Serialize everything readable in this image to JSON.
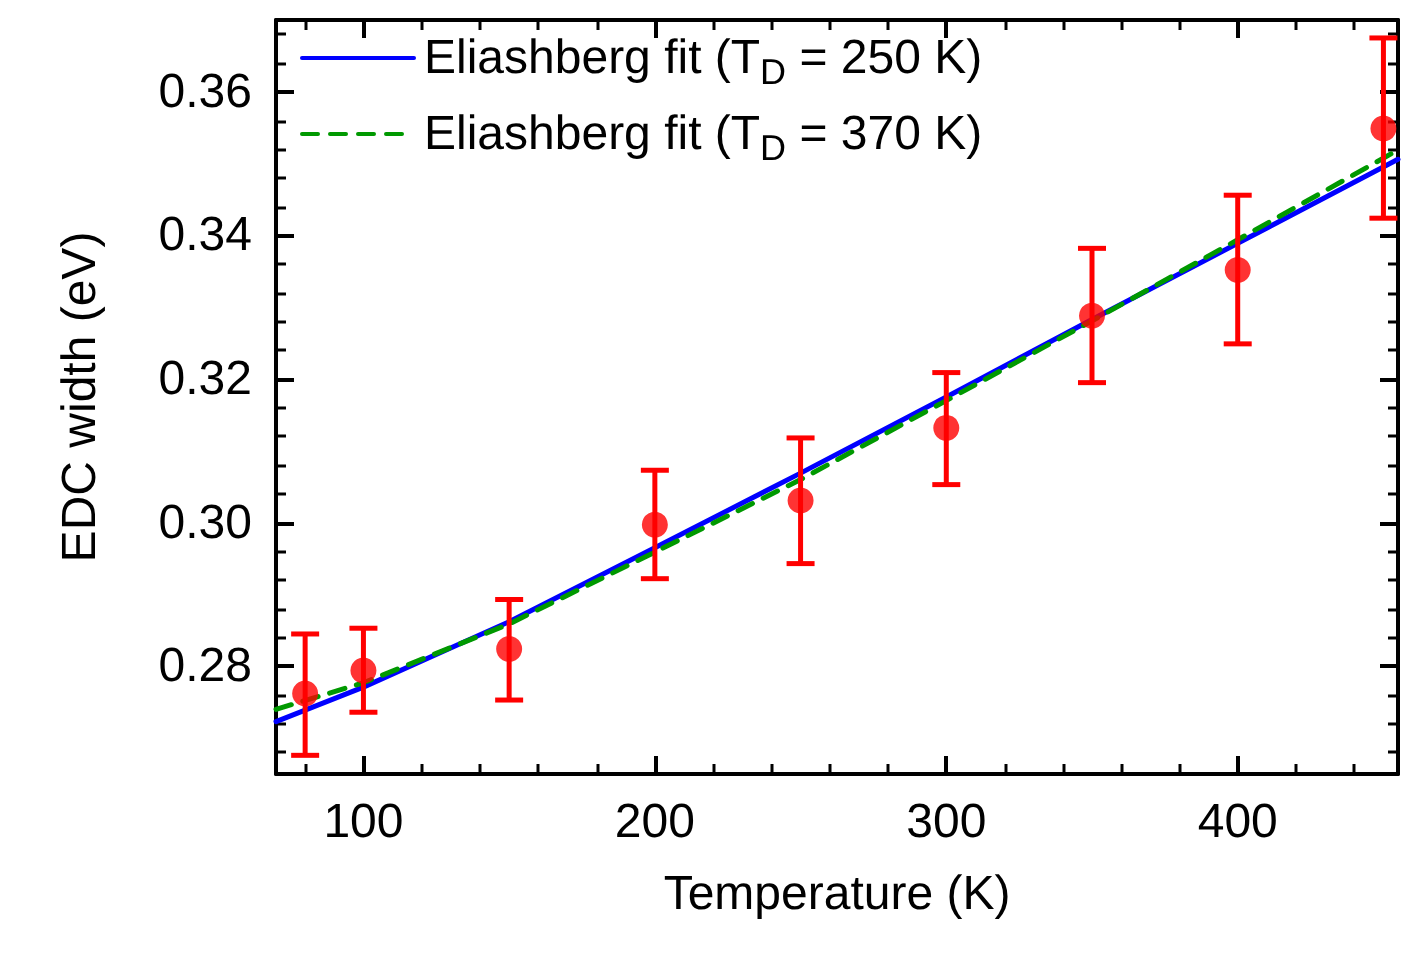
{
  "chart_data": {
    "type": "scatter",
    "xlabel": "Temperature (K)",
    "ylabel": "EDC width (eV)",
    "xlim": [
      70,
      455
    ],
    "ylim": [
      0.265,
      0.37
    ],
    "xticks": [
      100,
      200,
      300,
      400
    ],
    "yticks": [
      {
        "value": 0.28,
        "label": "0.28"
      },
      {
        "value": 0.3,
        "label": "0.30"
      },
      {
        "value": 0.32,
        "label": "0.32"
      },
      {
        "value": 0.34,
        "label": "0.34"
      },
      {
        "value": 0.36,
        "label": "0.36"
      }
    ],
    "grid": false,
    "legend": "top left",
    "series": [
      {
        "name": "Eliashberg fit (T$_{D}$ = 250 K)",
        "type": "line",
        "line_style": "solid",
        "marker": "none",
        "color": "#0000ff",
        "x": [
          70,
          100,
          150,
          200,
          250,
          300,
          350,
          400,
          455
        ],
        "values": [
          0.2723,
          0.2771,
          0.2862,
          0.2965,
          0.3069,
          0.3175,
          0.3283,
          0.3389,
          0.3506
        ]
      },
      {
        "name": "Eliashberg fit (T$_{D}$ = 370 K)",
        "type": "line",
        "line_style": "dashed",
        "marker": "none",
        "color": "#009900",
        "x": [
          70,
          100,
          150,
          200,
          250,
          300,
          350,
          400,
          455
        ],
        "values": [
          0.274,
          0.2777,
          0.2859,
          0.2959,
          0.306,
          0.317,
          0.3281,
          0.3394,
          0.3519
        ]
      },
      {
        "marker": "circle",
        "color": "#ff0000",
        "x": [
          80,
          100,
          150,
          200,
          250,
          300,
          350,
          400,
          450
        ],
        "values": [
          0.2762,
          0.2794,
          0.2824,
          0.2997,
          0.3031,
          0.3132,
          0.3288,
          0.3352,
          0.3549
        ],
        "errors": [
          [
            0.2676,
            0.2845
          ],
          [
            0.2736,
            0.2853
          ],
          [
            0.2753,
            0.2893
          ],
          [
            0.2922,
            0.3073
          ],
          [
            0.2943,
            0.3118
          ],
          [
            0.3053,
            0.3209
          ],
          [
            0.3195,
            0.3382
          ],
          [
            0.3249,
            0.3456
          ],
          [
            0.3424,
            0.3675
          ]
        ]
      }
    ]
  }
}
